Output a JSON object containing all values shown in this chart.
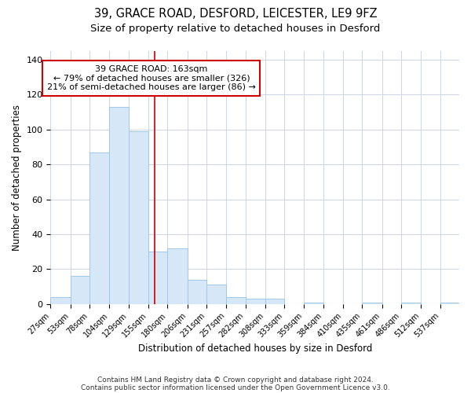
{
  "title_line1": "39, GRACE ROAD, DESFORD, LEICESTER, LE9 9FZ",
  "title_line2": "Size of property relative to detached houses in Desford",
  "xlabel": "Distribution of detached houses by size in Desford",
  "ylabel": "Number of detached properties",
  "bar_color": "#d6e8f7",
  "bar_edge_color": "#a0c8e8",
  "background_color": "#ffffff",
  "grid_color": "#d0d8e8",
  "vline_x_index": 5,
  "vline_color": "#cc0000",
  "annotation_text": "39 GRACE ROAD: 163sqm\n← 79% of detached houses are smaller (326)\n21% of semi-detached houses are larger (86) →",
  "annotation_box_color": "#ffffff",
  "annotation_border_color": "#cc0000",
  "categories": [
    "27sqm",
    "53sqm",
    "78sqm",
    "104sqm",
    "129sqm",
    "155sqm",
    "180sqm",
    "206sqm",
    "231sqm",
    "257sqm",
    "282sqm",
    "308sqm",
    "333sqm",
    "359sqm",
    "384sqm",
    "410sqm",
    "435sqm",
    "461sqm",
    "486sqm",
    "512sqm",
    "537sqm"
  ],
  "bin_edges": [
    27,
    53,
    78,
    104,
    129,
    155,
    180,
    206,
    231,
    257,
    282,
    308,
    333,
    359,
    384,
    410,
    435,
    461,
    486,
    512,
    537,
    562
  ],
  "values": [
    4,
    16,
    87,
    113,
    99,
    30,
    32,
    14,
    11,
    4,
    3,
    3,
    0,
    1,
    0,
    0,
    1,
    0,
    1,
    0,
    1
  ],
  "ylim": [
    0,
    145
  ],
  "yticks": [
    0,
    20,
    40,
    60,
    80,
    100,
    120,
    140
  ],
  "footer_line1": "Contains HM Land Registry data © Crown copyright and database right 2024.",
  "footer_line2": "Contains public sector information licensed under the Open Government Licence v3.0.",
  "title_fontsize": 10.5,
  "subtitle_fontsize": 9.5,
  "axis_fontsize": 8.5,
  "tick_fontsize": 7,
  "footer_fontsize": 6.5,
  "annotation_fontsize": 8
}
